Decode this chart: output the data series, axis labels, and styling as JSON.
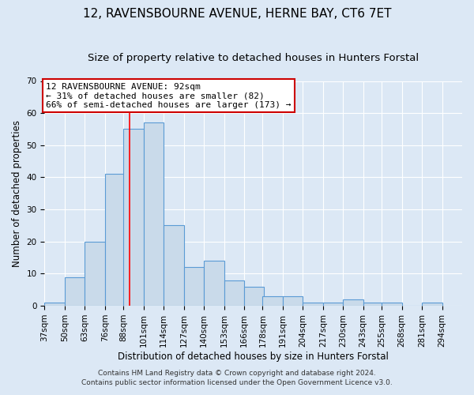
{
  "title": "12, RAVENSBOURNE AVENUE, HERNE BAY, CT6 7ET",
  "subtitle": "Size of property relative to detached houses in Hunters Forstal",
  "xlabel": "Distribution of detached houses by size in Hunters Forstal",
  "ylabel": "Number of detached properties",
  "bin_labels": [
    "37sqm",
    "50sqm",
    "63sqm",
    "76sqm",
    "88sqm",
    "101sqm",
    "114sqm",
    "127sqm",
    "140sqm",
    "153sqm",
    "166sqm",
    "178sqm",
    "191sqm",
    "204sqm",
    "217sqm",
    "230sqm",
    "243sqm",
    "255sqm",
    "268sqm",
    "281sqm",
    "294sqm"
  ],
  "bin_edges": [
    37,
    50,
    63,
    76,
    88,
    101,
    114,
    127,
    140,
    153,
    166,
    178,
    191,
    204,
    217,
    230,
    243,
    255,
    268,
    281,
    294
  ],
  "bar_heights": [
    1,
    9,
    20,
    41,
    55,
    57,
    25,
    12,
    14,
    8,
    6,
    3,
    3,
    1,
    1,
    2,
    1,
    1,
    0,
    1
  ],
  "bar_color": "#c9daea",
  "bar_edge_color": "#5b9bd5",
  "red_line_x": 92,
  "ylim": [
    0,
    70
  ],
  "annotation_title": "12 RAVENSBOURNE AVENUE: 92sqm",
  "annotation_line1": "← 31% of detached houses are smaller (82)",
  "annotation_line2": "66% of semi-detached houses are larger (173) →",
  "annotation_box_color": "#ffffff",
  "annotation_box_edge": "#cc0000",
  "footer1": "Contains HM Land Registry data © Crown copyright and database right 2024.",
  "footer2": "Contains public sector information licensed under the Open Government Licence v3.0.",
  "background_color": "#dce8f5",
  "grid_color": "#ffffff",
  "title_fontsize": 11,
  "subtitle_fontsize": 9.5,
  "axis_label_fontsize": 8.5,
  "tick_fontsize": 7.5,
  "annotation_fontsize": 8,
  "footer_fontsize": 6.5
}
